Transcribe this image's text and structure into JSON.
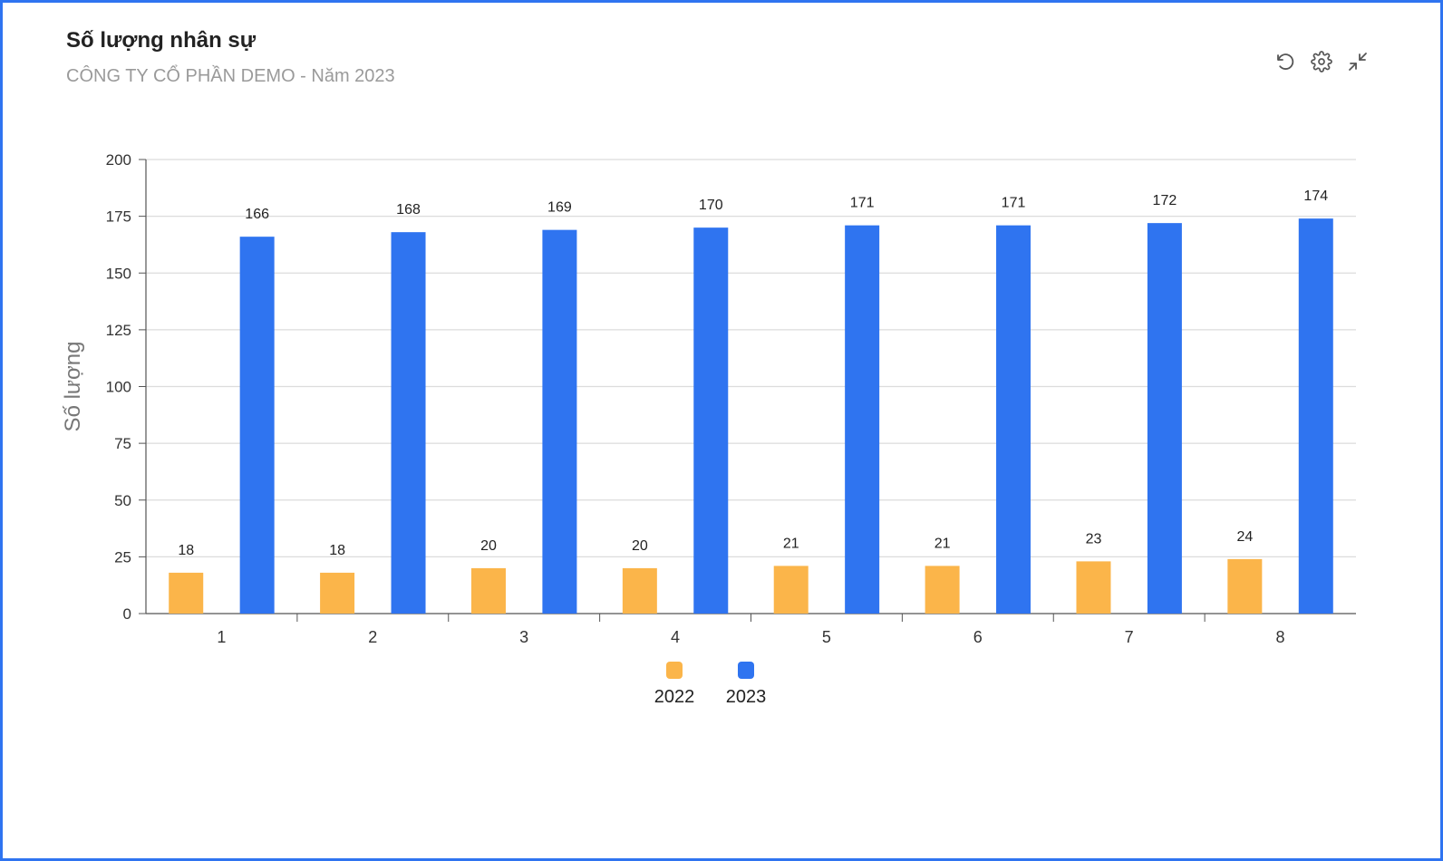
{
  "header": {
    "title": "Số lượng nhân sự",
    "subtitle": "CÔNG TY CỔ PHẦN DEMO - Năm 2023"
  },
  "toolbar": {
    "icons": [
      "refresh-icon",
      "gear-icon",
      "collapse-icon"
    ]
  },
  "chart_data": {
    "type": "bar",
    "categories": [
      "1",
      "2",
      "3",
      "4",
      "5",
      "6",
      "7",
      "8"
    ],
    "series": [
      {
        "name": "2022",
        "color": "#fbb54a",
        "values": [
          18,
          18,
          20,
          20,
          21,
          21,
          23,
          24
        ]
      },
      {
        "name": "2023",
        "color": "#2f74f0",
        "values": [
          166,
          168,
          169,
          170,
          171,
          171,
          172,
          174
        ]
      }
    ],
    "ylabel": "Số lượng",
    "ylim": [
      0,
      200
    ],
    "yticks": [
      0,
      25,
      50,
      75,
      100,
      125,
      150,
      175,
      200
    ],
    "grid": true,
    "legend": "bottom-center"
  }
}
